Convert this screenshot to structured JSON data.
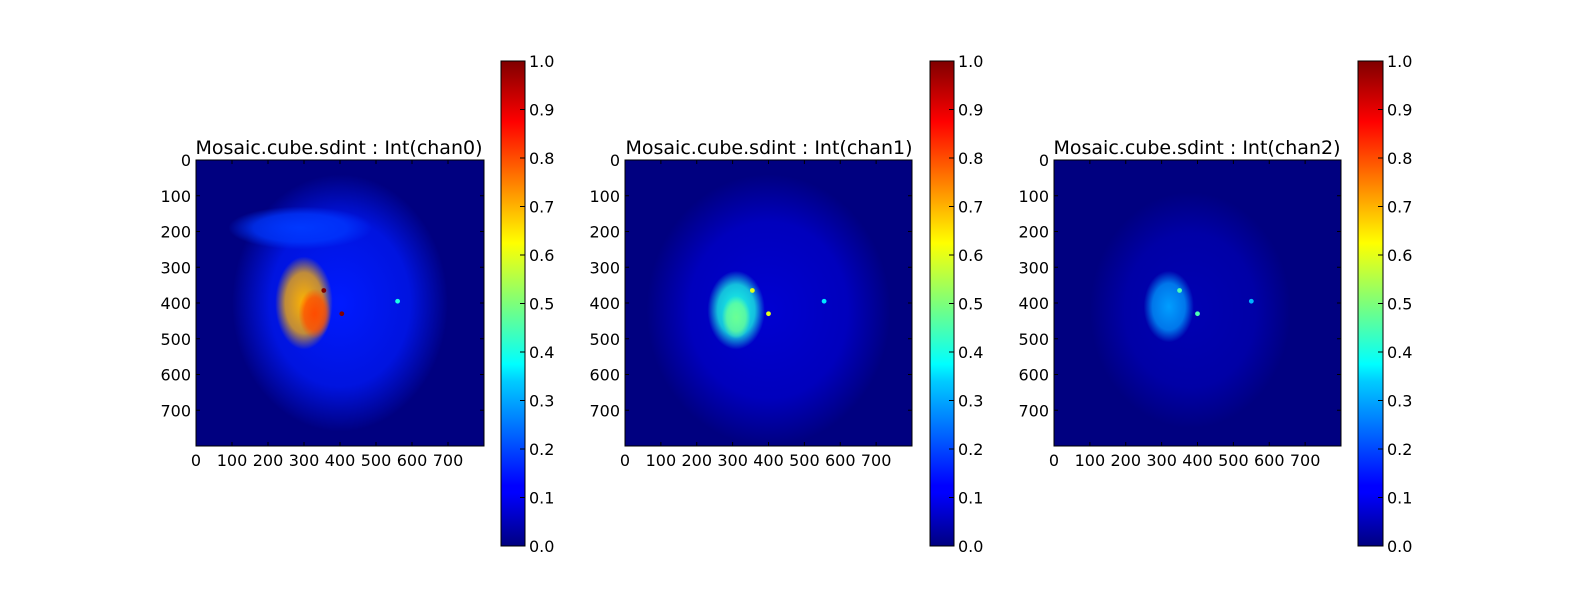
{
  "chart_data": [
    {
      "type": "heatmap",
      "title": "Mosaic.cube.sdint : Int(chan0)",
      "x_ticks": [
        0,
        100,
        200,
        300,
        400,
        500,
        600,
        700
      ],
      "y_ticks": [
        0,
        100,
        200,
        300,
        400,
        500,
        600,
        700
      ],
      "xlim": [
        0,
        800
      ],
      "ylim": [
        800,
        0
      ],
      "colorbar": {
        "min": 0.0,
        "max": 1.0,
        "ticks": [
          "0.0",
          "0.1",
          "0.2",
          "0.3",
          "0.4",
          "0.5",
          "0.6",
          "0.7",
          "0.8",
          "0.9",
          "1.0"
        ]
      },
      "colormap": "jet",
      "blobs": [
        {
          "cx": 400,
          "cy": 400,
          "rx": 300,
          "ry": 360,
          "value": 0.15
        },
        {
          "cx": 290,
          "cy": 190,
          "rx": 200,
          "ry": 60,
          "value": 0.18
        },
        {
          "cx": 300,
          "cy": 400,
          "rx": 80,
          "ry": 130,
          "value": 0.7
        },
        {
          "cx": 330,
          "cy": 430,
          "rx": 45,
          "ry": 70,
          "value": 0.8
        }
      ],
      "point_sources": [
        {
          "x": 355,
          "y": 365,
          "value": 1.0
        },
        {
          "x": 405,
          "y": 430,
          "value": 1.0
        },
        {
          "x": 560,
          "y": 395,
          "value": 0.4
        }
      ]
    },
    {
      "type": "heatmap",
      "title": "Mosaic.cube.sdint : Int(chan1)",
      "x_ticks": [
        0,
        100,
        200,
        300,
        400,
        500,
        600,
        700
      ],
      "y_ticks": [
        0,
        100,
        200,
        300,
        400,
        500,
        600,
        700
      ],
      "xlim": [
        0,
        800
      ],
      "ylim": [
        800,
        0
      ],
      "colorbar": {
        "min": 0.0,
        "max": 1.0,
        "ticks": [
          "0.0",
          "0.1",
          "0.2",
          "0.3",
          "0.4",
          "0.5",
          "0.6",
          "0.7",
          "0.8",
          "0.9",
          "1.0"
        ]
      },
      "colormap": "jet",
      "blobs": [
        {
          "cx": 400,
          "cy": 420,
          "rx": 340,
          "ry": 380,
          "value": 0.08
        },
        {
          "cx": 310,
          "cy": 420,
          "rx": 80,
          "ry": 110,
          "value": 0.4
        },
        {
          "cx": 310,
          "cy": 440,
          "rx": 40,
          "ry": 60,
          "value": 0.48
        }
      ],
      "point_sources": [
        {
          "x": 355,
          "y": 365,
          "value": 0.6
        },
        {
          "x": 400,
          "y": 430,
          "value": 0.6
        },
        {
          "x": 555,
          "y": 395,
          "value": 0.35
        }
      ]
    },
    {
      "type": "heatmap",
      "title": "Mosaic.cube.sdint : Int(chan2)",
      "x_ticks": [
        0,
        100,
        200,
        300,
        400,
        500,
        600,
        700
      ],
      "y_ticks": [
        0,
        100,
        200,
        300,
        400,
        500,
        600,
        700
      ],
      "xlim": [
        0,
        800
      ],
      "ylim": [
        800,
        0
      ],
      "colorbar": {
        "min": 0.0,
        "max": 1.0,
        "ticks": [
          "0.0",
          "0.1",
          "0.2",
          "0.3",
          "0.4",
          "0.5",
          "0.6",
          "0.7",
          "0.8",
          "0.9",
          "1.0"
        ]
      },
      "colormap": "jet",
      "blobs": [
        {
          "cx": 380,
          "cy": 420,
          "rx": 280,
          "ry": 330,
          "value": 0.05
        },
        {
          "cx": 320,
          "cy": 410,
          "rx": 70,
          "ry": 100,
          "value": 0.28
        }
      ],
      "point_sources": [
        {
          "x": 350,
          "y": 365,
          "value": 0.45
        },
        {
          "x": 400,
          "y": 430,
          "value": 0.45
        },
        {
          "x": 550,
          "y": 395,
          "value": 0.3
        }
      ]
    }
  ]
}
